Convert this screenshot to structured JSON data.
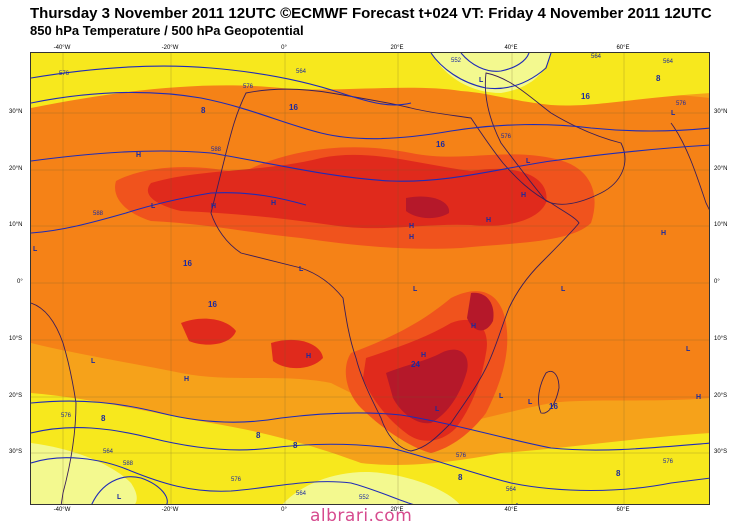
{
  "title": {
    "line1": "Thursday 3 November 2011 12UTC ©ECMWF Forecast t+024 VT: Friday 4 November 2011 12UTC",
    "line2": "850 hPa Temperature / 500 hPa Geopotential"
  },
  "axes": {
    "lon_top": [
      "-40°W",
      "-20°W",
      "0°",
      "20°E",
      "40°E",
      "60°E"
    ],
    "lon_bottom": [
      "-40°W",
      "-20°W",
      "0°",
      "20°E",
      "40°E",
      "60°E"
    ],
    "lat_left": [
      "30°N",
      "20°N",
      "10°N",
      "0°",
      "10°S",
      "20°S",
      "30°S"
    ],
    "lat_right": [
      "30°N",
      "20°N",
      "10°N",
      "0°",
      "10°S",
      "20°S",
      "30°S"
    ]
  },
  "temperature_labels": [
    "16",
    "16",
    "16",
    "16",
    "16",
    "24",
    "16",
    "8",
    "8",
    "8",
    "8",
    "8",
    "8",
    "8"
  ],
  "geopotential_labels": [
    "576",
    "576",
    "588",
    "588",
    "576",
    "576",
    "576",
    "576",
    "564",
    "564",
    "552",
    "564",
    "576",
    "588",
    "564",
    "564",
    "576",
    "552",
    "564"
  ],
  "pressure_markers": [
    "H",
    "H",
    "H",
    "H",
    "H",
    "H",
    "H",
    "H",
    "H",
    "H",
    "H",
    "H",
    "H",
    "L",
    "L",
    "L",
    "L",
    "L",
    "L",
    "L",
    "L",
    "L",
    "L",
    "L",
    "L",
    "L",
    "L",
    "L"
  ],
  "colors": {
    "sea_ocean": "#f6a21a",
    "warm": "#f58217",
    "hot": "#f0531d",
    "very_hot": "#e02a1c",
    "extreme": "#b5182a",
    "cool_yellow": "#f7e81d",
    "cold_lightyellow": "#f3f98f",
    "contour": "#1f2bb8",
    "coast": "#3a1e5a"
  },
  "watermark": "albrari.com"
}
